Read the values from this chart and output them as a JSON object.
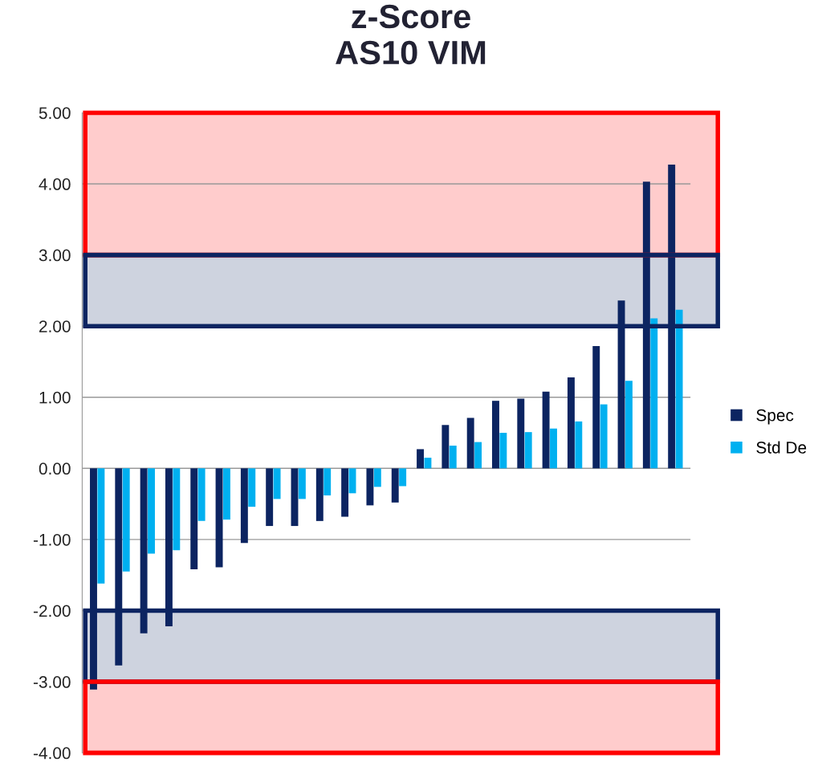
{
  "chart_data": {
    "type": "bar",
    "title": "z-Score\nAS10 VIM",
    "categories": [
      null,
      null,
      null,
      null,
      null,
      null,
      null,
      null,
      null,
      null,
      null,
      null,
      null,
      null,
      null,
      null,
      null,
      null,
      null,
      null,
      null,
      null,
      null,
      null
    ],
    "series": [
      {
        "name": "Spec",
        "color": "#0c2461",
        "values": [
          -3.11,
          -2.77,
          -2.32,
          -2.22,
          -1.42,
          -1.39,
          -1.05,
          -0.81,
          -0.81,
          -0.74,
          -0.68,
          -0.52,
          -0.48,
          0.27,
          0.61,
          0.71,
          0.95,
          0.98,
          1.08,
          1.28,
          1.72,
          2.36,
          4.03,
          4.27
        ]
      },
      {
        "name": "Std De",
        "color": "#00b0f0",
        "values": [
          -1.62,
          -1.45,
          -1.2,
          -1.15,
          -0.74,
          -0.72,
          -0.54,
          -0.43,
          -0.43,
          -0.38,
          -0.35,
          -0.26,
          -0.25,
          0.15,
          0.32,
          0.37,
          0.5,
          0.51,
          0.56,
          0.66,
          0.9,
          1.23,
          2.11,
          2.23
        ]
      }
    ],
    "ylim": [
      -4,
      5
    ],
    "yticks": [
      {
        "value": -4,
        "label": "-4.00"
      },
      {
        "value": -3,
        "label": "-3.00"
      },
      {
        "value": -2,
        "label": "-2.00"
      },
      {
        "value": -1,
        "label": "-1.00"
      },
      {
        "value": 0,
        "label": "0.00"
      },
      {
        "value": 1,
        "label": "1.00"
      },
      {
        "value": 2,
        "label": "2.00"
      },
      {
        "value": 3,
        "label": "3.00"
      },
      {
        "value": 4,
        "label": "4.00"
      },
      {
        "value": 5,
        "label": "5.00"
      }
    ],
    "bands": [
      {
        "axis": "y",
        "from": 3,
        "to": 5,
        "color": "#ff0000"
      },
      {
        "axis": "y",
        "from": 2,
        "to": 3,
        "color": "#0c2461"
      },
      {
        "axis": "y",
        "from": -3,
        "to": -2,
        "color": "#0c2461"
      },
      {
        "axis": "y",
        "from": -4,
        "to": -3,
        "color": "#ff0000"
      }
    ],
    "grid": "y",
    "legend": "right"
  }
}
